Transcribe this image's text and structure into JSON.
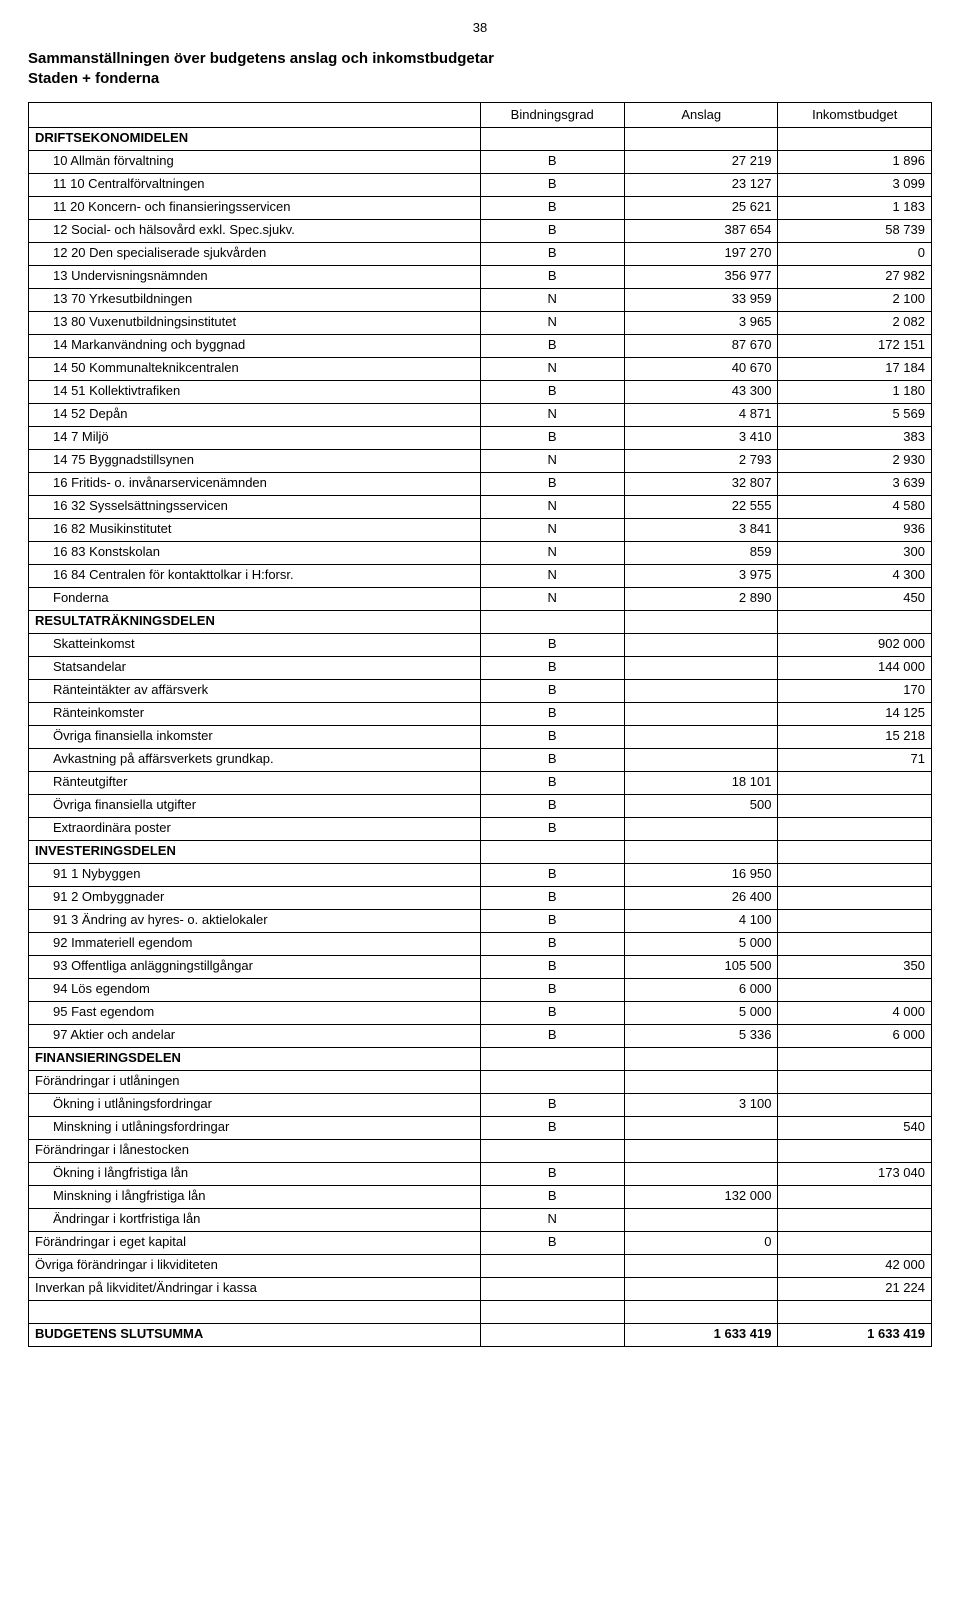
{
  "page_number": "38",
  "title_line1": "Sammanställningen över budgetens anslag och inkomstbudgetar",
  "title_line2": "Staden + fonderna",
  "headers": [
    "Bindningsgrad",
    "Anslag",
    "Inkomstbudget"
  ],
  "sections": [
    {
      "heading": "DRIFTSEKONOMIDELEN",
      "rows": [
        [
          "10 Allmän förvaltning",
          "B",
          "27 219",
          "1 896",
          true
        ],
        [
          "11 10 Centralförvaltningen",
          "B",
          "23 127",
          "3 099",
          true
        ],
        [
          "11 20 Koncern- och finansieringsservicen",
          "B",
          "25 621",
          "1 183",
          true
        ],
        [
          "12 Social- och hälsovård exkl. Spec.sjukv.",
          "B",
          "387 654",
          "58 739",
          true
        ],
        [
          "12 20 Den specialiserade sjukvården",
          "B",
          "197 270",
          "0",
          true
        ],
        [
          "13 Undervisningsnämnden",
          "B",
          "356 977",
          "27 982",
          true
        ],
        [
          "13 70 Yrkesutbildningen",
          "N",
          "33 959",
          "2 100",
          true
        ],
        [
          "13 80 Vuxenutbildningsinstitutet",
          "N",
          "3 965",
          "2 082",
          true
        ],
        [
          "14 Markanvändning och byggnad",
          "B",
          "87 670",
          "172 151",
          true
        ],
        [
          "14 50 Kommunalteknikcentralen",
          "N",
          "40 670",
          "17 184",
          true
        ],
        [
          "14 51 Kollektivtrafiken",
          "B",
          "43 300",
          "1 180",
          true
        ],
        [
          "14 52 Depån",
          "N",
          "4 871",
          "5 569",
          true
        ],
        [
          "14 7 Miljö",
          "B",
          "3 410",
          "383",
          true
        ],
        [
          "14 75 Byggnadstillsynen",
          "N",
          "2 793",
          "2 930",
          true
        ],
        [
          "16 Fritids- o. invånarservicenämnden",
          "B",
          "32 807",
          "3 639",
          true
        ],
        [
          "16 32 Sysselsättningsservicen",
          "N",
          "22 555",
          "4 580",
          true
        ],
        [
          "16 82 Musikinstitutet",
          "N",
          "3 841",
          "936",
          true
        ],
        [
          "16 83 Konstskolan",
          "N",
          "859",
          "300",
          true
        ],
        [
          "16 84 Centralen för kontakttolkar i H:forsr.",
          "N",
          "3 975",
          "4 300",
          true
        ],
        [
          "Fonderna",
          "N",
          "2 890",
          "450",
          true
        ]
      ]
    },
    {
      "heading": "RESULTATRÄKNINGSDELEN",
      "rows": [
        [
          "Skatteinkomst",
          "B",
          "",
          "902 000",
          true
        ],
        [
          "Statsandelar",
          "B",
          "",
          "144 000",
          true
        ],
        [
          "Ränteintäkter av affärsverk",
          "B",
          "",
          "170",
          true
        ],
        [
          "Ränteinkomster",
          "B",
          "",
          "14 125",
          true
        ],
        [
          "Övriga finansiella inkomster",
          "B",
          "",
          "15 218",
          true
        ],
        [
          "Avkastning på affärsverkets grundkap.",
          "B",
          "",
          "71",
          true
        ],
        [
          "Ränteutgifter",
          "B",
          "18 101",
          "",
          true
        ],
        [
          "Övriga finansiella utgifter",
          "B",
          "500",
          "",
          true
        ],
        [
          "Extraordinära poster",
          "B",
          "",
          "",
          true
        ]
      ]
    },
    {
      "heading": "INVESTERINGSDELEN",
      "rows": [
        [
          "91 1 Nybyggen",
          "B",
          "16 950",
          "",
          true
        ],
        [
          "91 2 Ombyggnader",
          "B",
          "26 400",
          "",
          true
        ],
        [
          "91 3 Ändring av hyres- o. aktielokaler",
          "B",
          "4 100",
          "",
          true
        ],
        [
          "92 Immateriell egendom",
          "B",
          "5 000",
          "",
          true
        ],
        [
          "93 Offentliga anläggningstillgångar",
          "B",
          "105 500",
          "350",
          true
        ],
        [
          "94 Lös egendom",
          "B",
          "6 000",
          "",
          true
        ],
        [
          "95 Fast egendom",
          "B",
          "5 000",
          "4 000",
          true
        ],
        [
          "97 Aktier och andelar",
          "B",
          "5 336",
          "6 000",
          true
        ]
      ]
    },
    {
      "heading": "FINANSIERINGSDELEN",
      "rows": [
        [
          "Förändringar i utlåningen",
          "",
          "",
          "",
          false
        ],
        [
          "Ökning i utlåningsfordringar",
          "B",
          "3 100",
          "",
          true
        ],
        [
          "Minskning i utlåningsfordringar",
          "B",
          "",
          "540",
          true
        ],
        [
          "Förändringar i lånestocken",
          "",
          "",
          "",
          false
        ],
        [
          "Ökning i långfristiga lån",
          "B",
          "",
          "173 040",
          true
        ],
        [
          "Minskning i långfristiga lån",
          "B",
          "132 000",
          "",
          true
        ],
        [
          "Ändringar i kortfristiga lån",
          "N",
          "",
          "",
          true
        ],
        [
          "Förändringar i eget kapital",
          "B",
          "0",
          "",
          false
        ],
        [
          "Övriga förändringar i likviditeten",
          "",
          "",
          "42 000",
          false
        ],
        [
          "Inverkan på likviditet/Ändringar i kassa",
          "",
          "",
          "21 224",
          false
        ]
      ]
    }
  ],
  "footer": [
    "BUDGETENS SLUTSUMMA",
    "",
    "1 633 419",
    "1 633 419"
  ]
}
